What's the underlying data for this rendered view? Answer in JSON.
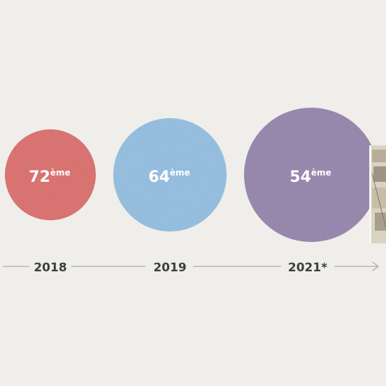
{
  "chart_data": {
    "type": "bubble-timeline",
    "categories": [
      "2018",
      "2019",
      "2021*"
    ],
    "values": [
      72,
      64,
      54
    ],
    "value_suffix": "ème",
    "series": [
      {
        "values": [
          72,
          64,
          54
        ],
        "colors": [
          "#d6625f",
          "#8bb8db",
          "#8c7ca6"
        ]
      }
    ]
  },
  "colors": {
    "background": "#efeeeb",
    "axis": "#b9b6b0",
    "year_text": "#3b3f3f",
    "value_text": "#ffffff"
  }
}
